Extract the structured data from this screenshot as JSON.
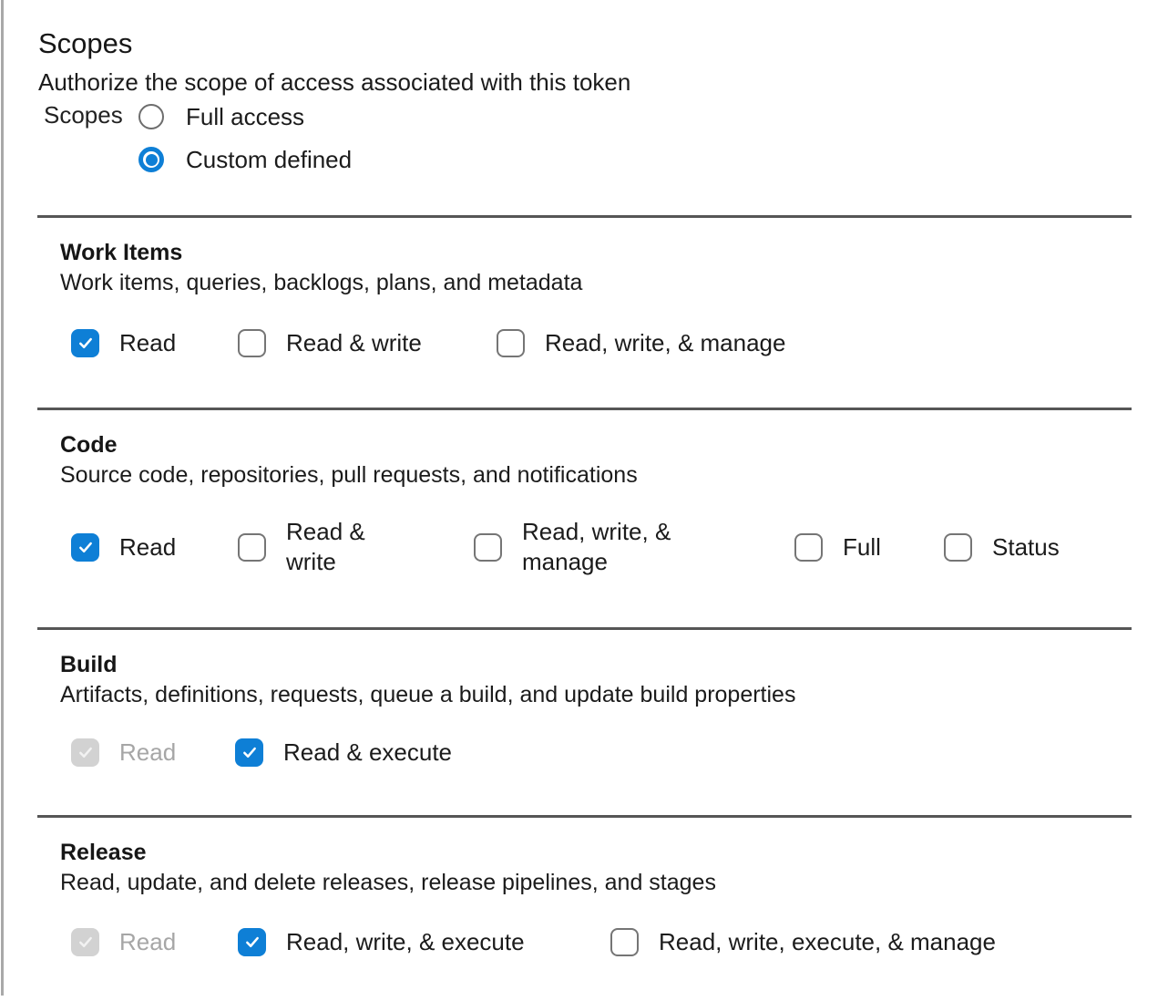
{
  "page": {
    "title": "Scopes",
    "subtitle": "Authorize the scope of access associated with this token",
    "form_label": "Scopes"
  },
  "radio_group": {
    "options": [
      {
        "label": "Full access",
        "selected": false
      },
      {
        "label": "Custom defined",
        "selected": true
      }
    ]
  },
  "sections": [
    {
      "title": "Work Items",
      "description": "Work items, queries, backlogs, plans, and metadata",
      "options": [
        {
          "label": "Read",
          "checked": true,
          "disabled": false
        },
        {
          "label": "Read & write",
          "checked": false,
          "disabled": false
        },
        {
          "label": "Read, write, & manage",
          "checked": false,
          "disabled": false
        }
      ]
    },
    {
      "title": "Code",
      "description": "Source code, repositories, pull requests, and notifications",
      "options": [
        {
          "label": "Read",
          "checked": true,
          "disabled": false
        },
        {
          "label": "Read & write",
          "checked": false,
          "disabled": false
        },
        {
          "label": "Read, write, & manage",
          "checked": false,
          "disabled": false
        },
        {
          "label": "Full",
          "checked": false,
          "disabled": false
        },
        {
          "label": "Status",
          "checked": false,
          "disabled": false
        }
      ]
    },
    {
      "title": "Build",
      "description": "Artifacts, definitions, requests, queue a build, and update build properties",
      "options": [
        {
          "label": "Read",
          "checked": true,
          "disabled": true
        },
        {
          "label": "Read & execute",
          "checked": true,
          "disabled": false
        }
      ]
    },
    {
      "title": "Release",
      "description": "Read, update, and delete releases, release pipelines, and stages",
      "options": [
        {
          "label": "Read",
          "checked": true,
          "disabled": true
        },
        {
          "label": "Read, write, & execute",
          "checked": true,
          "disabled": false
        },
        {
          "label": "Read, write, execute, & manage",
          "checked": false,
          "disabled": false
        }
      ]
    }
  ],
  "colors": {
    "accent": "#0e7fd6",
    "divider": "#565656",
    "disabled_fill": "#d2d2d2",
    "disabled_check": "#f2f2f2",
    "disabled_text": "#a6a6a6"
  }
}
